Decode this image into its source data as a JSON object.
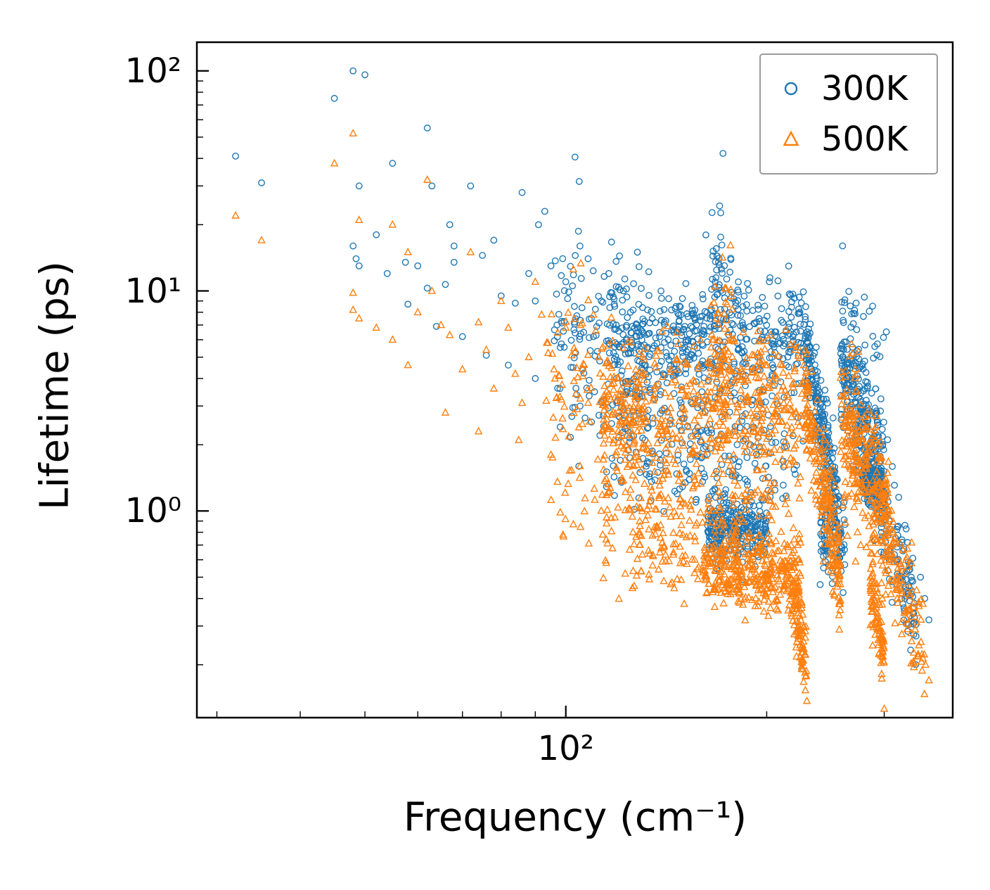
{
  "chart_data": {
    "type": "scatter",
    "title": "",
    "xlabel": "Frequency (cm⁻¹)",
    "ylabel": "Lifetime (ps)",
    "x_scale": "log",
    "y_scale": "log",
    "xlim": [
      28,
      380
    ],
    "ylim": [
      0.115,
      135
    ],
    "grid": false,
    "x_major_ticks": [
      {
        "value": 100,
        "label": "10²"
      }
    ],
    "x_minor_ticks": [
      30,
      40,
      50,
      60,
      70,
      80,
      90,
      200,
      300
    ],
    "y_major_ticks": [
      {
        "value": 100,
        "label": "10²"
      },
      {
        "value": 10,
        "label": "10¹"
      },
      {
        "value": 1,
        "label": "10⁰"
      }
    ],
    "y_minor_ticks": [
      0.2,
      0.3,
      0.4,
      0.5,
      0.6,
      0.7,
      0.8,
      0.9,
      2,
      3,
      4,
      5,
      6,
      7,
      8,
      9,
      20,
      30,
      40,
      50,
      60,
      70,
      80,
      90
    ],
    "legend": {
      "position": "upper right",
      "entries": [
        {
          "label": "300K",
          "marker": "circle",
          "color": "#1f77b4"
        },
        {
          "label": "500K",
          "marker": "triangle",
          "color": "#ff7f0e"
        }
      ]
    },
    "seed": 1337,
    "series": [
      {
        "name": "300K",
        "marker": "circle",
        "color": "#1f77b4",
        "points": [
          [
            32,
            41
          ],
          [
            35,
            31
          ],
          [
            45,
            75
          ],
          [
            48,
            100
          ],
          [
            50,
            96
          ],
          [
            49,
            30
          ],
          [
            55,
            38
          ],
          [
            62,
            55
          ],
          [
            63,
            30
          ],
          [
            72,
            30
          ],
          [
            67,
            20
          ],
          [
            78,
            17
          ],
          [
            93,
            23
          ],
          [
            91,
            20
          ],
          [
            105,
            16
          ],
          [
            48,
            16
          ],
          [
            48.5,
            14
          ],
          [
            49,
            13
          ],
          [
            54,
            12
          ],
          [
            57.5,
            13.5
          ],
          [
            62,
            10.3
          ],
          [
            66,
            10.7
          ],
          [
            68,
            16
          ],
          [
            68,
            13.5
          ],
          [
            75,
            14.5
          ],
          [
            80,
            9.5
          ],
          [
            84,
            8.8
          ],
          [
            88,
            12
          ],
          [
            90,
            9
          ],
          [
            95,
            13
          ],
          [
            97,
            7
          ],
          [
            100,
            11
          ],
          [
            103,
            8.5
          ],
          [
            108,
            14
          ],
          [
            110,
            6.2
          ],
          [
            113,
            9
          ],
          [
            116,
            12
          ],
          [
            119,
            7
          ],
          [
            122,
            10
          ],
          [
            125,
            8
          ],
          [
            128,
            15
          ],
          [
            130,
            6
          ],
          [
            58,
            8.7
          ],
          [
            64,
            6.9
          ],
          [
            70,
            6.2
          ],
          [
            76,
            5.1
          ],
          [
            82,
            4.6
          ],
          [
            90,
            4
          ],
          [
            98,
            3.6
          ],
          [
            106,
            4.4
          ],
          [
            114,
            3.2
          ],
          [
            122,
            2.9
          ],
          [
            129,
            3.3
          ],
          [
            86,
            28
          ],
          [
            60,
            13
          ],
          [
            52,
            18
          ],
          [
            340,
            0.5
          ],
          [
            345,
            0.4
          ],
          [
            350,
            0.32
          ]
        ],
        "clusters": [
          {
            "n": 450,
            "x": [
              115,
              228
            ],
            "y": [
              6.0,
              6.5
            ],
            "spread": 0.13
          },
          {
            "n": 40,
            "x": [
              165,
              178
            ],
            "y": [
              10.5,
              12
            ],
            "spread": 0.18
          },
          {
            "n": 200,
            "x": [
              115,
              228
            ],
            "y": [
              2.8,
              2.5
            ],
            "spread": 0.18
          },
          {
            "n": 90,
            "x": [
              120,
              215
            ],
            "y": [
              1.6,
              1.4
            ],
            "spread": 0.12
          },
          {
            "n": 280,
            "x": [
              163,
              200
            ],
            "y": [
              0.85,
              0.8
            ],
            "spread": 0.07
          },
          {
            "n": 220,
            "x": [
              228,
              256
            ],
            "y": [
              6.0,
              1.0
            ],
            "spread": 0.1
          },
          {
            "n": 90,
            "x": [
              240,
              262
            ],
            "y": [
              0.8,
              0.72
            ],
            "spread": 0.09
          },
          {
            "n": 260,
            "x": [
              258,
              300
            ],
            "y": [
              4.5,
              1.6
            ],
            "spread": 0.16
          },
          {
            "n": 160,
            "x": [
              278,
              298
            ],
            "y": [
              1.45,
              1.25
            ],
            "spread": 0.05
          },
          {
            "n": 130,
            "x": [
              295,
              335
            ],
            "y": [
              1.2,
              0.35
            ],
            "spread": 0.13
          },
          {
            "n": 70,
            "x": [
              96,
              120
            ],
            "y": [
              7.5,
              6.2
            ],
            "spread": 0.22
          },
          {
            "n": 30,
            "x": [
              100,
              140
            ],
            "y": [
              3.3,
              2.7
            ],
            "spread": 0.15
          },
          {
            "n": 30,
            "x": [
              258,
              305
            ],
            "y": [
              7.0,
              6.0
            ],
            "spread": 0.12
          }
        ]
      },
      {
        "name": "500K",
        "marker": "triangle",
        "color": "#ff7f0e",
        "points": [
          [
            32,
            22
          ],
          [
            35,
            17
          ],
          [
            45,
            38
          ],
          [
            48,
            52
          ],
          [
            49,
            21
          ],
          [
            55,
            20
          ],
          [
            62,
            32
          ],
          [
            48,
            9.8
          ],
          [
            48,
            8.2
          ],
          [
            49,
            7.5
          ],
          [
            52,
            6.8
          ],
          [
            55,
            6
          ],
          [
            58,
            4.6
          ],
          [
            60,
            8
          ],
          [
            63,
            10
          ],
          [
            65,
            7
          ],
          [
            67,
            6.3
          ],
          [
            70,
            4.4
          ],
          [
            72,
            15
          ],
          [
            74,
            7.2
          ],
          [
            76,
            5.4
          ],
          [
            78,
            3.6
          ],
          [
            80,
            9
          ],
          [
            82,
            6.8
          ],
          [
            84,
            4.2
          ],
          [
            86,
            3.1
          ],
          [
            88,
            5
          ],
          [
            90,
            11
          ],
          [
            92,
            7.8
          ],
          [
            94,
            5.8
          ],
          [
            96,
            4.4
          ],
          [
            98,
            3.3
          ],
          [
            100,
            6.8
          ],
          [
            102,
            5.1
          ],
          [
            104,
            2.9
          ],
          [
            106,
            4.1
          ],
          [
            108,
            3.1
          ],
          [
            110,
            7.8
          ],
          [
            112,
            5
          ],
          [
            114,
            2.6
          ],
          [
            116,
            3.4
          ],
          [
            118,
            2.1
          ],
          [
            120,
            4
          ],
          [
            122,
            3
          ],
          [
            124,
            1.9
          ],
          [
            126,
            2.6
          ],
          [
            128,
            2.3
          ],
          [
            85,
            2.1
          ],
          [
            95,
            1.8
          ],
          [
            105,
            1.6
          ],
          [
            115,
            1.4
          ],
          [
            125,
            1.25
          ],
          [
            58,
            15
          ],
          [
            66,
            2.8
          ],
          [
            74,
            2.3
          ],
          [
            346,
            0.2
          ],
          [
            350,
            0.17
          ]
        ],
        "clusters": [
          {
            "n": 470,
            "x": [
              113,
              228
            ],
            "y": [
              3.0,
              3.2
            ],
            "spread": 0.15
          },
          {
            "n": 50,
            "x": [
              165,
              178
            ],
            "y": [
              5.5,
              6.0
            ],
            "spread": 0.2
          },
          {
            "n": 230,
            "x": [
              113,
              225
            ],
            "y": [
              1.3,
              1.1
            ],
            "spread": 0.18
          },
          {
            "n": 120,
            "x": [
              125,
              215
            ],
            "y": [
              0.75,
              0.6
            ],
            "spread": 0.12
          },
          {
            "n": 300,
            "x": [
              160,
              225
            ],
            "y": [
              0.55,
              0.5
            ],
            "spread": 0.08
          },
          {
            "n": 90,
            "x": [
              218,
              230
            ],
            "y": [
              0.45,
              0.21
            ],
            "spread": 0.09
          },
          {
            "n": 230,
            "x": [
              228,
              258
            ],
            "y": [
              3.4,
              0.5
            ],
            "spread": 0.13
          },
          {
            "n": 280,
            "x": [
              258,
              305
            ],
            "y": [
              2.6,
              0.9
            ],
            "spread": 0.17
          },
          {
            "n": 90,
            "x": [
              286,
              300
            ],
            "y": [
              0.45,
              0.23
            ],
            "spread": 0.09
          },
          {
            "n": 110,
            "x": [
              300,
              345
            ],
            "y": [
              0.8,
              0.2
            ],
            "spread": 0.13
          },
          {
            "n": 70,
            "x": [
              93,
              118
            ],
            "y": [
              3.6,
              3.1
            ],
            "spread": 0.25
          },
          {
            "n": 45,
            "x": [
              98,
              145
            ],
            "y": [
              1.0,
              0.7
            ],
            "spread": 0.13
          }
        ]
      }
    ]
  }
}
